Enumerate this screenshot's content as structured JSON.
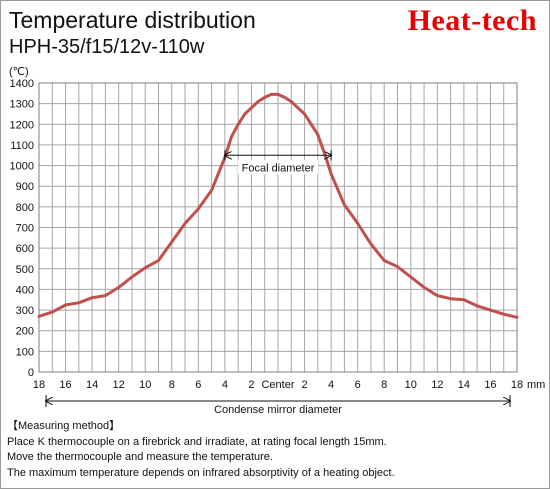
{
  "header": {
    "title": "Temperature distribution",
    "subtitle": "HPH-35/f15/12v-110w",
    "brand": "Heat-tech"
  },
  "chart_data": {
    "type": "line",
    "title": "Temperature distribution",
    "subtitle": "HPH-35/f15/12v-110w",
    "ylabel": "(℃)",
    "xlabel": "mm",
    "ylim": [
      0,
      1400
    ],
    "xlim": [
      -18,
      18
    ],
    "yticks": [
      0,
      100,
      200,
      300,
      400,
      500,
      600,
      700,
      800,
      900,
      1000,
      1100,
      1200,
      1300,
      1400
    ],
    "xtick_values": [
      -18,
      -16,
      -14,
      -12,
      -10,
      -8,
      -6,
      -4,
      -2,
      0,
      2,
      4,
      6,
      8,
      10,
      12,
      14,
      16,
      18
    ],
    "xtick_labels": [
      "18",
      "16",
      "14",
      "12",
      "10",
      "8",
      "6",
      "4",
      "2",
      "Center",
      "2",
      "4",
      "6",
      "8",
      "10",
      "12",
      "14",
      "16",
      "18"
    ],
    "grid": true,
    "line_color": "#c0504d",
    "series": [
      {
        "x": [
          -18,
          -17,
          -16,
          -15,
          -14,
          -13,
          -12,
          -11,
          -10,
          -9,
          -8,
          -7,
          -6,
          -5,
          -4,
          -3.5,
          -3,
          -2.5,
          -2,
          -1.5,
          -1,
          -0.5,
          0,
          0.5,
          1,
          1.5,
          2,
          2.5,
          3,
          3.5,
          4,
          5,
          6,
          7,
          8,
          9,
          10,
          11,
          12,
          13,
          14,
          15,
          16,
          17,
          18
        ],
        "values": [
          270,
          290,
          325,
          335,
          360,
          370,
          410,
          460,
          505,
          540,
          630,
          720,
          790,
          880,
          1040,
          1140,
          1200,
          1250,
          1280,
          1310,
          1330,
          1345,
          1345,
          1330,
          1310,
          1280,
          1250,
          1200,
          1150,
          1060,
          960,
          810,
          720,
          620,
          540,
          510,
          460,
          410,
          370,
          355,
          350,
          320,
          300,
          280,
          265
        ]
      }
    ],
    "annotations": {
      "focal_diameter": {
        "label": "Focal diameter",
        "x_from": -4,
        "x_to": 4,
        "y": 1050
      },
      "mirror_diameter": {
        "label": "Condense mirror diameter",
        "x_from": -18,
        "x_to": 18
      }
    }
  },
  "notes": {
    "heading": "【Measuring method】",
    "lines": [
      "Place K thermocouple on a firebrick and irradiate, at rating focal length 15mm.",
      "Move the thermocouple and measure the temperature.",
      "The maximum temperature depends on infrared absorptivity of a heating object."
    ]
  }
}
